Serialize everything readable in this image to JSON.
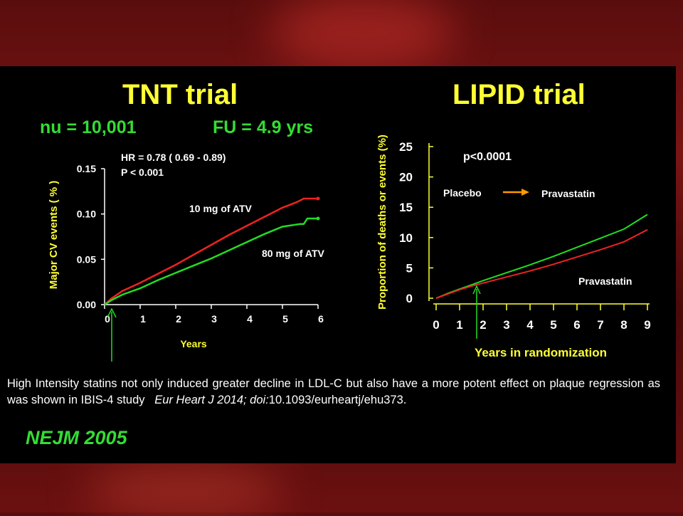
{
  "colors": {
    "yellow": "#ffff33",
    "green": "#22dd22",
    "red": "#ee2222",
    "orange": "#ff9900",
    "white": "#ffffff"
  },
  "tnt": {
    "title": "TNT trial",
    "n_label": "nu = 10,001",
    "fu_label": "FU = 4.9 yrs",
    "hr": "HR = 0.78 ( 0.69 - 0.89)",
    "p": "P < 0.001",
    "series_red_label": "10 mg of ATV",
    "series_green_label": "80 mg of ATV"
  },
  "lipid": {
    "title": "LIPID trial",
    "p": "p<0.0001",
    "placebo_label": "Placebo",
    "pravastatin_label": "Pravastatin",
    "pravastatin_label_2": "Pravastatin"
  },
  "caption": {
    "text": "High Intensity statins not only induced greater decline in LDL-C but also have a more potent effect on plaque regression as was shown in IBIS-4 study",
    "ref_italic": "Eur Heart J 2014; doi:",
    "ref_plain": "10.1093/eurheartj/ehu373."
  },
  "footer": {
    "source": "NEJM 2005"
  },
  "chart_data": [
    {
      "type": "line",
      "title": "TNT trial",
      "xlabel": "Years",
      "ylabel": "Major CV events ( % )",
      "xlim": [
        0,
        6
      ],
      "ylim": [
        0,
        0.15
      ],
      "xticks": [
        "0",
        "1",
        "2",
        "3",
        "4",
        "5",
        "6"
      ],
      "yticks": [
        "0.00",
        "0.05",
        "0.10",
        "0.15"
      ],
      "annotations": [
        "HR = 0.78 ( 0.69 - 0.89)",
        "P < 0.001"
      ],
      "series": [
        {
          "name": "10 mg of ATV",
          "color": "#ee2222",
          "x": [
            0,
            0.2,
            0.5,
            1,
            1.5,
            2,
            2.5,
            3,
            3.5,
            4,
            4.5,
            5,
            5.4,
            5.6,
            6
          ],
          "y": [
            0,
            0.007,
            0.015,
            0.024,
            0.034,
            0.044,
            0.055,
            0.066,
            0.077,
            0.087,
            0.097,
            0.107,
            0.113,
            0.117,
            0.117
          ]
        },
        {
          "name": "80 mg of ATV",
          "color": "#22dd22",
          "x": [
            0,
            0.2,
            0.5,
            1,
            1.5,
            2,
            2.5,
            3,
            3.5,
            4,
            4.5,
            5,
            5.5,
            5.6,
            5.7,
            6
          ],
          "y": [
            0,
            0.005,
            0.011,
            0.018,
            0.027,
            0.035,
            0.043,
            0.051,
            0.06,
            0.069,
            0.078,
            0.086,
            0.089,
            0.089,
            0.095,
            0.095
          ]
        }
      ]
    },
    {
      "type": "line",
      "title": "LIPID trial",
      "xlabel": "Years in  randomization",
      "ylabel": "Proportion of deaths or events (%)",
      "xlim": [
        0,
        9
      ],
      "ylim": [
        0,
        25
      ],
      "xticks": [
        "0",
        "1",
        "2",
        "3",
        "4",
        "5",
        "6",
        "7",
        "8",
        "9"
      ],
      "yticks": [
        "0",
        "5",
        "10",
        "15",
        "20",
        "25"
      ],
      "annotations": [
        "p<0.0001"
      ],
      "series": [
        {
          "name": "Placebo",
          "color": "#22dd22",
          "x": [
            0,
            0.5,
            1,
            1.5,
            2,
            3,
            4,
            5,
            6,
            7,
            8,
            9
          ],
          "y": [
            0,
            0.8,
            1.5,
            2.2,
            2.9,
            4.2,
            5.5,
            6.9,
            8.4,
            9.9,
            11.4,
            13.8
          ]
        },
        {
          "name": "Pravastatin",
          "color": "#ee2222",
          "x": [
            0,
            0.5,
            1,
            1.5,
            2,
            3,
            4,
            5,
            6,
            7,
            8,
            9
          ],
          "y": [
            0,
            0.7,
            1.4,
            2.0,
            2.5,
            3.5,
            4.5,
            5.6,
            6.8,
            8.0,
            9.3,
            11.3
          ]
        }
      ]
    }
  ]
}
